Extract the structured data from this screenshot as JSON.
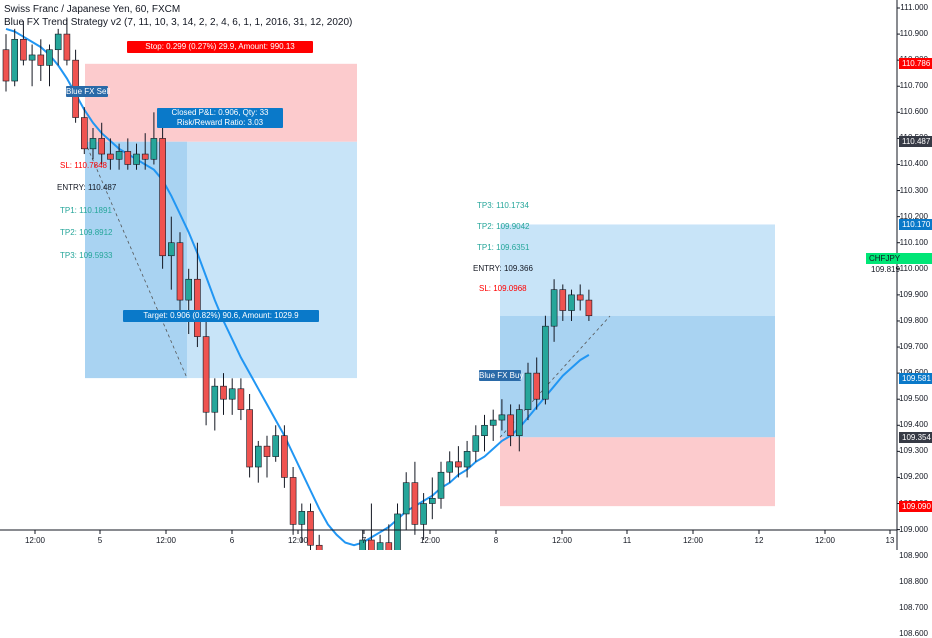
{
  "header": {
    "symbol_line": "Swiss Franc / Japanese Yen, 60, FXCM",
    "indicator_line": "Blue FX Trend Strategy v2 (7, 11, 10, 3, 14, 2, 2, 4, 6, 1, 1, 2016, 31, 12, 2020)"
  },
  "colors": {
    "bull": "#26a69a",
    "bear": "#ef5350",
    "trend_line": "#2196f3",
    "zone_red": "#fccbcd",
    "zone_blue": "#c8e4f8",
    "zone_blue_dark": "#a9d3f2",
    "label_red": "#ff0000",
    "label_blue": "#0a79c9",
    "tag_green": "#00e676",
    "tag_dark": "#363a45"
  },
  "price_axis": {
    "ticks": [
      "111.000",
      "110.900",
      "110.800",
      "110.700",
      "110.600",
      "110.500",
      "110.400",
      "110.300",
      "110.200",
      "110.100",
      "110.000",
      "109.900",
      "109.800",
      "109.700",
      "109.600",
      "109.500",
      "109.400",
      "109.300",
      "109.200",
      "109.100",
      "109.000",
      "108.900",
      "108.800",
      "108.700",
      "108.600"
    ],
    "tags": [
      {
        "text": "110.786",
        "price": 110.786,
        "color": "#ff0000"
      },
      {
        "text": "110.487",
        "price": 110.487,
        "color": "#363a45"
      },
      {
        "text": "110.170",
        "price": 110.17,
        "color": "#0a79c9"
      },
      {
        "text": "109.581",
        "price": 109.581,
        "color": "#0a79c9"
      },
      {
        "text": "109.354",
        "price": 109.354,
        "color": "#363a45"
      },
      {
        "text": "109.090",
        "price": 109.09,
        "color": "#ff0000"
      }
    ],
    "symbol_tag": {
      "name": "CHFJPY",
      "value": "109.819"
    }
  },
  "time_axis": [
    "12:00",
    "5",
    "12:00",
    "6",
    "12:00",
    "7",
    "12:00",
    "8",
    "12:00",
    "11",
    "12:00",
    "12",
    "12:00",
    "13"
  ],
  "trade_sell": {
    "stop_label": "Stop: 0.299 (0.27%) 29.9, Amount: 990.13",
    "closed_label_line1": "Closed P&L: 0.906, Qty: 33",
    "closed_label_line2": "Risk/Reward Ratio: 3.03",
    "target_label": "Target: 0.906 (0.82%) 90.6, Amount: 1029.9",
    "signal": "Blue FX Sell",
    "sl": "SL: 110.7848",
    "entry": "ENTRY: 110.487",
    "tp1": "TP1: 110.1891",
    "tp2": "TP2: 109.8912",
    "tp3": "TP3: 109.5933"
  },
  "trade_buy": {
    "signal": "Blue FX Buy",
    "tp3": "TP3: 110.1734",
    "tp2": "TP2: 109.9042",
    "tp1": "TP1: 109.6351",
    "entry": "ENTRY: 109.366",
    "sl": "SL: 109.0968"
  },
  "chart_data": {
    "type": "candlestick",
    "symbol": "CHFJPY",
    "timeframe": "60",
    "ylim": [
      108.55,
      111.05
    ],
    "candles": [
      [
        110.84,
        110.9,
        110.68,
        110.72
      ],
      [
        110.72,
        110.92,
        110.7,
        110.88
      ],
      [
        110.88,
        110.95,
        110.78,
        110.8
      ],
      [
        110.8,
        110.86,
        110.7,
        110.82
      ],
      [
        110.82,
        110.88,
        110.72,
        110.78
      ],
      [
        110.78,
        110.86,
        110.7,
        110.84
      ],
      [
        110.84,
        110.92,
        110.78,
        110.9
      ],
      [
        110.9,
        110.96,
        110.78,
        110.8
      ],
      [
        110.8,
        110.84,
        110.56,
        110.58
      ],
      [
        110.58,
        110.62,
        110.44,
        110.46
      ],
      [
        110.46,
        110.54,
        110.42,
        110.5
      ],
      [
        110.5,
        110.56,
        110.4,
        110.44
      ],
      [
        110.44,
        110.5,
        110.38,
        110.42
      ],
      [
        110.42,
        110.48,
        110.38,
        110.45
      ],
      [
        110.45,
        110.5,
        110.38,
        110.4
      ],
      [
        110.4,
        110.48,
        110.38,
        110.44
      ],
      [
        110.44,
        110.52,
        110.38,
        110.42
      ],
      [
        110.42,
        110.6,
        110.4,
        110.5
      ],
      [
        110.5,
        110.54,
        110.0,
        110.05
      ],
      [
        110.05,
        110.2,
        109.92,
        110.1
      ],
      [
        110.1,
        110.14,
        109.82,
        109.88
      ],
      [
        109.88,
        110.0,
        109.75,
        109.96
      ],
      [
        109.96,
        110.1,
        109.7,
        109.74
      ],
      [
        109.74,
        109.8,
        109.4,
        109.45
      ],
      [
        109.45,
        109.58,
        109.38,
        109.55
      ],
      [
        109.55,
        109.6,
        109.44,
        109.5
      ],
      [
        109.5,
        109.58,
        109.44,
        109.54
      ],
      [
        109.54,
        109.58,
        109.42,
        109.46
      ],
      [
        109.46,
        109.52,
        109.2,
        109.24
      ],
      [
        109.24,
        109.34,
        109.18,
        109.32
      ],
      [
        109.32,
        109.36,
        109.2,
        109.28
      ],
      [
        109.28,
        109.4,
        109.26,
        109.36
      ],
      [
        109.36,
        109.4,
        109.16,
        109.2
      ],
      [
        109.2,
        109.24,
        108.98,
        109.02
      ],
      [
        109.02,
        109.1,
        108.95,
        109.07
      ],
      [
        109.07,
        109.1,
        108.9,
        108.94
      ],
      [
        108.94,
        108.98,
        108.76,
        108.8
      ],
      [
        108.8,
        108.88,
        108.74,
        108.84
      ],
      [
        108.84,
        108.9,
        108.76,
        108.78
      ],
      [
        108.78,
        108.84,
        108.72,
        108.82
      ],
      [
        108.82,
        108.88,
        108.74,
        108.76
      ],
      [
        108.76,
        109.0,
        108.72,
        108.96
      ],
      [
        108.96,
        109.1,
        108.86,
        108.92
      ],
      [
        108.92,
        108.98,
        108.86,
        108.95
      ],
      [
        108.95,
        109.02,
        108.88,
        108.9
      ],
      [
        108.9,
        109.1,
        108.86,
        109.06
      ],
      [
        109.06,
        109.22,
        109.0,
        109.18
      ],
      [
        109.18,
        109.26,
        108.98,
        109.02
      ],
      [
        109.02,
        109.14,
        108.96,
        109.1
      ],
      [
        109.1,
        109.2,
        109.04,
        109.12
      ],
      [
        109.12,
        109.26,
        109.08,
        109.22
      ],
      [
        109.22,
        109.3,
        109.18,
        109.26
      ],
      [
        109.26,
        109.32,
        109.2,
        109.24
      ],
      [
        109.24,
        109.34,
        109.2,
        109.3
      ],
      [
        109.3,
        109.4,
        109.26,
        109.36
      ],
      [
        109.36,
        109.44,
        109.3,
        109.4
      ],
      [
        109.4,
        109.46,
        109.34,
        109.42
      ],
      [
        109.42,
        109.5,
        109.38,
        109.44
      ],
      [
        109.44,
        109.48,
        109.32,
        109.36
      ],
      [
        109.36,
        109.48,
        109.3,
        109.46
      ],
      [
        109.46,
        109.64,
        109.42,
        109.6
      ],
      [
        109.6,
        109.66,
        109.46,
        109.5
      ],
      [
        109.5,
        109.82,
        109.48,
        109.78
      ],
      [
        109.78,
        109.96,
        109.72,
        109.92
      ],
      [
        109.92,
        109.94,
        109.8,
        109.84
      ],
      [
        109.84,
        109.92,
        109.8,
        109.9
      ],
      [
        109.9,
        109.94,
        109.84,
        109.88
      ],
      [
        109.88,
        109.92,
        109.8,
        109.82
      ]
    ],
    "trend_line": [
      110.92,
      110.91,
      110.89,
      110.87,
      110.85,
      110.82,
      110.78,
      110.73,
      110.67,
      110.61,
      110.56,
      110.52,
      110.49,
      110.46,
      110.44,
      110.42,
      110.4,
      110.38,
      110.34,
      110.28,
      110.21,
      110.14,
      110.06,
      109.97,
      109.88,
      109.8,
      109.73,
      109.66,
      109.6,
      109.54,
      109.48,
      109.42,
      109.36,
      109.29,
      109.22,
      109.15,
      109.08,
      109.02,
      108.98,
      108.95,
      108.94,
      108.95,
      108.97,
      108.99,
      109.01,
      109.04,
      109.07,
      109.09,
      109.11,
      109.13,
      109.16,
      109.18,
      109.21,
      109.23,
      109.26,
      109.28,
      109.31,
      109.34,
      109.36,
      109.39,
      109.43,
      109.47,
      109.51,
      109.55,
      109.59,
      109.62,
      109.65,
      109.67
    ]
  }
}
